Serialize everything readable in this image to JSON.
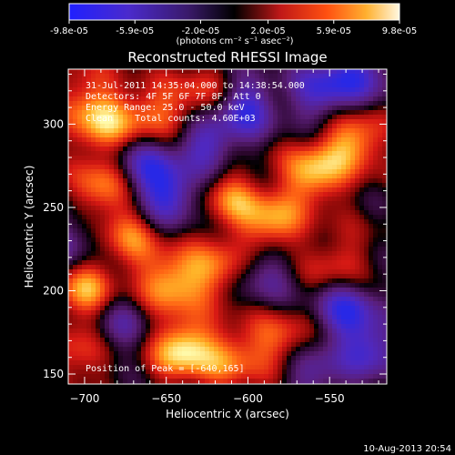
{
  "colorbar": {
    "ticks": [
      "-9.8e-05",
      "-5.9e-05",
      "-2.0e-05",
      "2.0e-05",
      "5.9e-05",
      "9.8e-05"
    ],
    "tick_values": [
      -9.8e-05,
      -5.9e-05,
      -2e-05,
      2e-05,
      5.9e-05,
      9.8e-05
    ],
    "range": [
      -9.8e-05,
      9.8e-05
    ],
    "units_label": "(photons cm⁻² s⁻¹ asec⁻²)"
  },
  "annotations": {
    "time_range": "31-Jul-2011 14:35:04.000 to 14:38:54.000",
    "detectors": "Detectors: 4F 5F 6F 7F 8F, Att 0",
    "energy_range": "Energy Range: 25.0 - 50.0 keV",
    "clean_line": "Clean    Total counts: 4.60E+03",
    "peak_position": "Position of Peak = [-640,165]"
  },
  "footer": {
    "date_stamp": "10-Aug-2013 20:54"
  },
  "colors": {
    "background": "#000000",
    "image_min": "#2020c0",
    "image_mid_low": "#5a1a7a",
    "image_zero": "#000000",
    "image_mid_high": "#d01818",
    "image_max": "#ffffa0"
  },
  "chart_data": {
    "type": "heatmap",
    "title": "Reconstructed RHESSI Image",
    "xlabel": "Heliocentric X (arcsec)",
    "ylabel": "Heliocentric Y (arcsec)",
    "xlim": [
      -710,
      -515
    ],
    "ylim": [
      144,
      333
    ],
    "x_ticks": [
      -700,
      -650,
      -600,
      -550
    ],
    "y_ticks": [
      150,
      200,
      250,
      300
    ],
    "x_tick_labels": [
      "−700",
      "−650",
      "−600",
      "−550"
    ],
    "y_tick_labels": [
      "150",
      "200",
      "250",
      "300"
    ],
    "colormap": "blue-purple-black-red-yellow-white",
    "value_range": [
      -9.8e-05,
      9.8e-05
    ],
    "peak": [
      -640,
      165
    ],
    "features": [
      {
        "x": -640,
        "y": 165,
        "value": 9.8e-05
      },
      {
        "x": -700,
        "y": 200,
        "value": 7.5e-05
      },
      {
        "x": -688,
        "y": 262,
        "value": 7e-05
      },
      {
        "x": -672,
        "y": 232,
        "value": 5.5e-05
      },
      {
        "x": -648,
        "y": 205,
        "value": 8e-05
      },
      {
        "x": -620,
        "y": 212,
        "value": 6.5e-05
      },
      {
        "x": -610,
        "y": 255,
        "value": 6e-05
      },
      {
        "x": -585,
        "y": 240,
        "value": 7.5e-05
      },
      {
        "x": -560,
        "y": 270,
        "value": 8.5e-05
      },
      {
        "x": -535,
        "y": 290,
        "value": 8e-05
      },
      {
        "x": -545,
        "y": 215,
        "value": 5e-05
      },
      {
        "x": -580,
        "y": 170,
        "value": 5.5e-05
      },
      {
        "x": -610,
        "y": 160,
        "value": 6e-05
      },
      {
        "x": -690,
        "y": 300,
        "value": 7.5e-05
      },
      {
        "x": -660,
        "y": 305,
        "value": 6e-05
      },
      {
        "x": -630,
        "y": 315,
        "value": 5e-05
      },
      {
        "x": -700,
        "y": 320,
        "value": 4e-05
      },
      {
        "x": -705,
        "y": 160,
        "value": 4.5e-05
      },
      {
        "x": -625,
        "y": 290,
        "value": -7.5e-05
      },
      {
        "x": -600,
        "y": 310,
        "value": -8e-05
      },
      {
        "x": -648,
        "y": 258,
        "value": -8.5e-05
      },
      {
        "x": -665,
        "y": 275,
        "value": -7e-05
      },
      {
        "x": -555,
        "y": 320,
        "value": -8e-05
      },
      {
        "x": -530,
        "y": 330,
        "value": -7e-05
      },
      {
        "x": -540,
        "y": 190,
        "value": -8.5e-05
      },
      {
        "x": -525,
        "y": 165,
        "value": -7.5e-05
      },
      {
        "x": -560,
        "y": 150,
        "value": -5.5e-05
      },
      {
        "x": -590,
        "y": 210,
        "value": -5e-05
      },
      {
        "x": -678,
        "y": 180,
        "value": -4.5e-05
      },
      {
        "x": -710,
        "y": 230,
        "value": -5e-05
      }
    ]
  }
}
